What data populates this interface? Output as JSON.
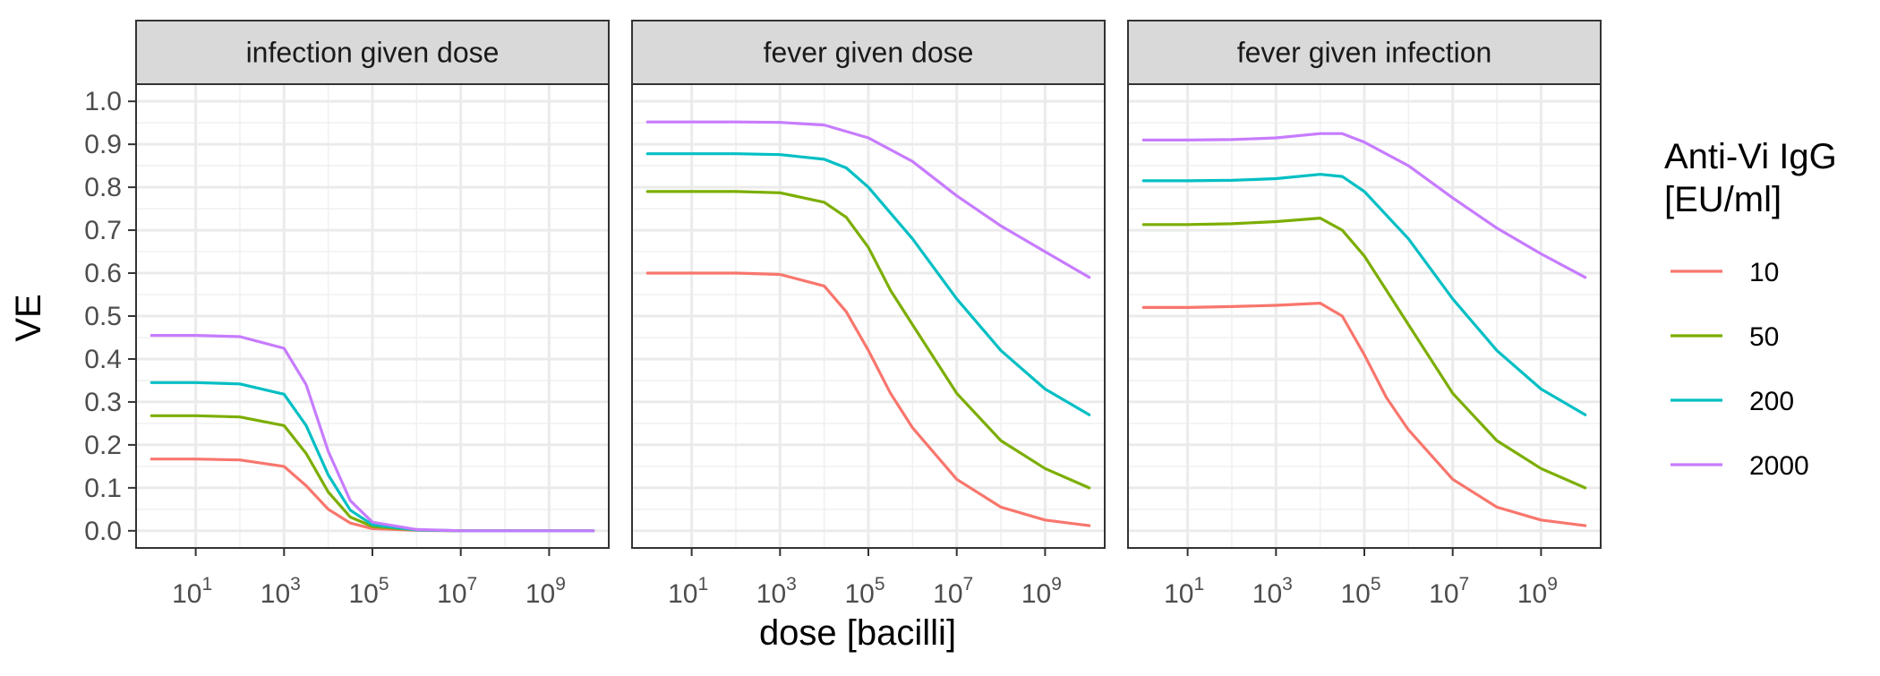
{
  "chart_data": {
    "type": "line",
    "xlabel": "dose [bacilli]",
    "ylabel": "VE",
    "x_scale": "log10",
    "xlim": [
      1,
      10000000000
    ],
    "ylim": [
      0.0,
      1.0
    ],
    "grid": true,
    "x_ticks": [
      {
        "value": 10,
        "base": "10",
        "exp": "1"
      },
      {
        "value": 1000,
        "base": "10",
        "exp": "3"
      },
      {
        "value": 100000,
        "base": "10",
        "exp": "5"
      },
      {
        "value": 10000000,
        "base": "10",
        "exp": "7"
      },
      {
        "value": 1000000000,
        "base": "10",
        "exp": "9"
      }
    ],
    "y_ticks": [
      "0.0",
      "0.1",
      "0.2",
      "0.3",
      "0.4",
      "0.5",
      "0.6",
      "0.7",
      "0.8",
      "0.9",
      "1.0"
    ],
    "legend": {
      "title_lines": [
        "Anti-Vi IgG",
        "[EU/ml]"
      ],
      "placement": "right",
      "entries": [
        {
          "label": "10",
          "color": "#F8766D"
        },
        {
          "label": "50",
          "color": "#7CAE00"
        },
        {
          "label": "200",
          "color": "#00BFC4"
        },
        {
          "label": "2000",
          "color": "#C77CFF"
        }
      ]
    },
    "panels": [
      {
        "title": "infection given dose",
        "series": [
          {
            "name": "10",
            "color": "#F8766D",
            "x": [
              1,
              10,
              100,
              1000,
              3162,
              10000,
              31623,
              100000,
              1000000,
              10000000,
              100000000,
              10000000000
            ],
            "y": [
              0.167,
              0.167,
              0.165,
              0.15,
              0.105,
              0.05,
              0.018,
              0.005,
              0.001,
              0.0,
              0.0,
              0.0
            ]
          },
          {
            "name": "50",
            "color": "#7CAE00",
            "x": [
              1,
              10,
              100,
              1000,
              3162,
              10000,
              31623,
              100000,
              1000000,
              10000000,
              100000000,
              10000000000
            ],
            "y": [
              0.268,
              0.268,
              0.265,
              0.245,
              0.18,
              0.09,
              0.032,
              0.01,
              0.002,
              0.0,
              0.0,
              0.0
            ]
          },
          {
            "name": "200",
            "color": "#00BFC4",
            "x": [
              1,
              10,
              100,
              1000,
              3162,
              10000,
              31623,
              100000,
              1000000,
              10000000,
              100000000,
              10000000000
            ],
            "y": [
              0.345,
              0.345,
              0.342,
              0.318,
              0.245,
              0.13,
              0.048,
              0.014,
              0.002,
              0.0,
              0.0,
              0.0
            ]
          },
          {
            "name": "2000",
            "color": "#C77CFF",
            "x": [
              1,
              10,
              100,
              1000,
              3162,
              10000,
              31623,
              100000,
              1000000,
              10000000,
              100000000,
              10000000000
            ],
            "y": [
              0.455,
              0.455,
              0.452,
              0.425,
              0.34,
              0.185,
              0.07,
              0.02,
              0.003,
              0.0,
              0.0,
              0.0
            ]
          }
        ]
      },
      {
        "title": "fever given dose",
        "series": [
          {
            "name": "10",
            "color": "#F8766D",
            "x": [
              1,
              10,
              100,
              1000,
              10000,
              31623,
              100000,
              316228,
              1000000,
              10000000,
              100000000,
              1000000000,
              10000000000
            ],
            "y": [
              0.6,
              0.6,
              0.6,
              0.597,
              0.57,
              0.51,
              0.42,
              0.32,
              0.24,
              0.12,
              0.055,
              0.025,
              0.012
            ]
          },
          {
            "name": "50",
            "color": "#7CAE00",
            "x": [
              1,
              10,
              100,
              1000,
              10000,
              31623,
              100000,
              316228,
              1000000,
              10000000,
              100000000,
              1000000000,
              10000000000
            ],
            "y": [
              0.79,
              0.79,
              0.79,
              0.787,
              0.765,
              0.73,
              0.66,
              0.56,
              0.48,
              0.32,
              0.21,
              0.145,
              0.1
            ]
          },
          {
            "name": "200",
            "color": "#00BFC4",
            "x": [
              1,
              10,
              100,
              1000,
              10000,
              31623,
              100000,
              1000000,
              10000000,
              100000000,
              1000000000,
              10000000000
            ],
            "y": [
              0.878,
              0.878,
              0.878,
              0.876,
              0.865,
              0.845,
              0.8,
              0.68,
              0.54,
              0.42,
              0.33,
              0.27
            ]
          },
          {
            "name": "2000",
            "color": "#C77CFF",
            "x": [
              1,
              10,
              100,
              1000,
              10000,
              100000,
              1000000,
              10000000,
              100000000,
              1000000000,
              10000000000
            ],
            "y": [
              0.952,
              0.952,
              0.952,
              0.951,
              0.945,
              0.915,
              0.86,
              0.78,
              0.71,
              0.65,
              0.59
            ]
          }
        ]
      },
      {
        "title": "fever given infection",
        "series": [
          {
            "name": "10",
            "color": "#F8766D",
            "x": [
              1,
              10,
              100,
              1000,
              10000,
              31623,
              100000,
              316228,
              1000000,
              10000000,
              100000000,
              1000000000,
              10000000000
            ],
            "y": [
              0.52,
              0.52,
              0.522,
              0.525,
              0.53,
              0.5,
              0.41,
              0.31,
              0.235,
              0.12,
              0.055,
              0.025,
              0.012
            ]
          },
          {
            "name": "50",
            "color": "#7CAE00",
            "x": [
              1,
              10,
              100,
              1000,
              10000,
              31623,
              100000,
              316228,
              1000000,
              10000000,
              100000000,
              1000000000,
              10000000000
            ],
            "y": [
              0.713,
              0.713,
              0.715,
              0.72,
              0.728,
              0.7,
              0.64,
              0.56,
              0.48,
              0.32,
              0.21,
              0.145,
              0.1
            ]
          },
          {
            "name": "200",
            "color": "#00BFC4",
            "x": [
              1,
              10,
              100,
              1000,
              10000,
              31623,
              100000,
              1000000,
              10000000,
              100000000,
              1000000000,
              10000000000
            ],
            "y": [
              0.815,
              0.815,
              0.816,
              0.82,
              0.83,
              0.825,
              0.79,
              0.68,
              0.54,
              0.42,
              0.33,
              0.27
            ]
          },
          {
            "name": "2000",
            "color": "#C77CFF",
            "x": [
              1,
              10,
              100,
              1000,
              10000,
              31623,
              100000,
              1000000,
              10000000,
              100000000,
              1000000000,
              10000000000
            ],
            "y": [
              0.91,
              0.91,
              0.911,
              0.915,
              0.925,
              0.925,
              0.905,
              0.85,
              0.775,
              0.705,
              0.645,
              0.59
            ]
          }
        ]
      }
    ]
  }
}
